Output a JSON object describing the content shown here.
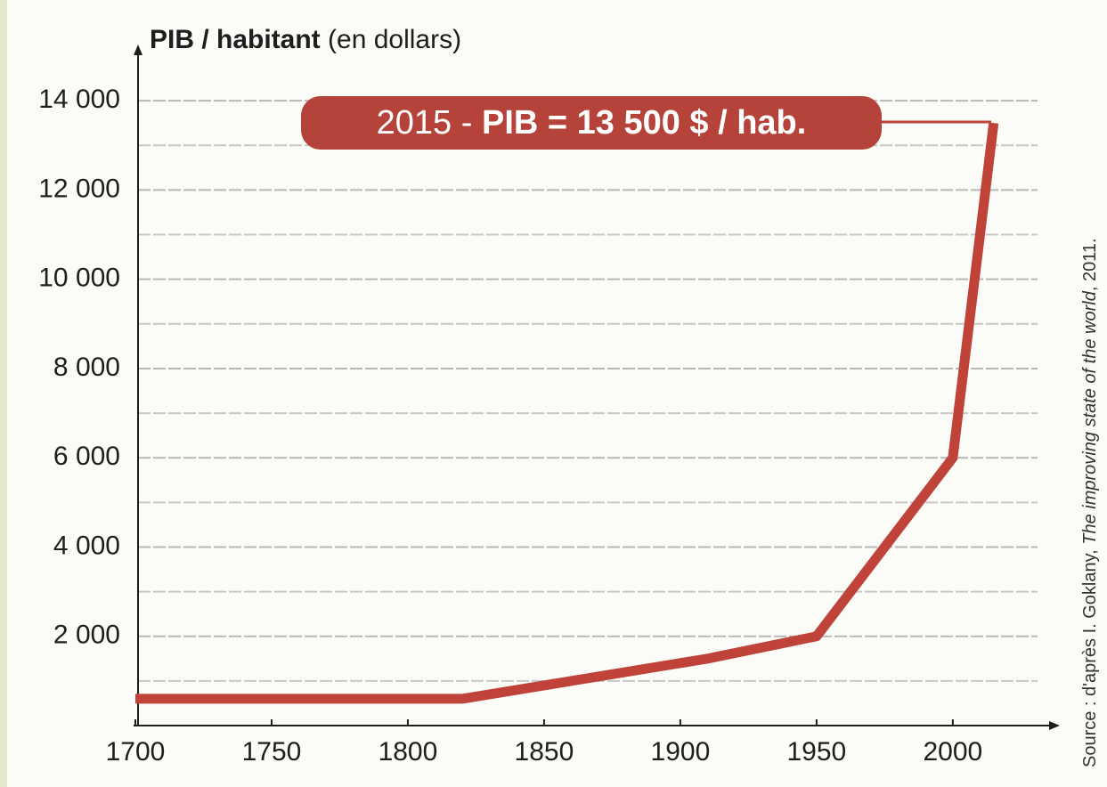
{
  "chart_data": {
    "type": "line",
    "y_label_bold": "PIB / habitant",
    "y_label_rest": " (en dollars)",
    "annotation_light": "2015 - ",
    "annotation_bold": "PIB = 13 500 $ / hab.",
    "source": [
      "Source : d'après I. Goklany, ",
      "The improving state of the world",
      ", 2011."
    ],
    "x": [
      1700,
      1820,
      1910,
      1950,
      2000,
      2015
    ],
    "series": [
      {
        "name": "PIB / habitant",
        "color": "#c0433a",
        "values": [
          600,
          600,
          1500,
          2000,
          6000,
          13500
        ]
      }
    ],
    "xlim": [
      1700,
      2036
    ],
    "xticks": [
      1700,
      1750,
      1800,
      1850,
      1900,
      1950,
      2000
    ],
    "ylim": [
      0,
      15100
    ],
    "yticks": [
      {
        "value": 2000,
        "label": "2 000"
      },
      {
        "value": 4000,
        "label": "4 000"
      },
      {
        "value": 6000,
        "label": "6 000"
      },
      {
        "value": 8000,
        "label": "8 000"
      },
      {
        "value": 10000,
        "label": "10 000"
      },
      {
        "value": 12000,
        "label": "12 000"
      },
      {
        "value": 14000,
        "label": "14 000"
      }
    ],
    "minor_yticks": [
      1000,
      3000,
      5000,
      7000,
      9000,
      11000,
      13000
    ],
    "grid": true
  }
}
